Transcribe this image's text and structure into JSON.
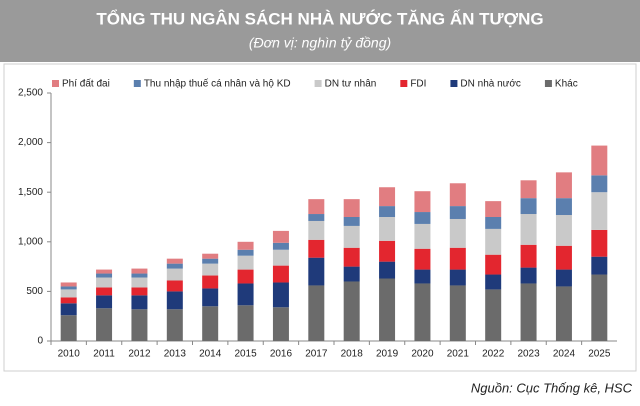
{
  "chart_data": {
    "type": "stacked_bar",
    "title": "TỔNG THU NGÂN SÁCH NHÀ NƯỚC TĂNG ẤN TƯỢNG",
    "subtitle": "(Đơn vị: nghìn tỷ đồng)",
    "source": "Nguồn: Cục Thống kê, HSC",
    "categories": [
      "2010",
      "2011",
      "2012",
      "2013",
      "2014",
      "2015",
      "2016",
      "2017",
      "2018",
      "2019",
      "2020",
      "2021",
      "2022",
      "2023",
      "2024",
      "2025"
    ],
    "series": [
      {
        "name": "Phí đất đai",
        "color": "#e17d81",
        "values": [
          40,
          40,
          50,
          50,
          50,
          80,
          120,
          150,
          180,
          190,
          210,
          230,
          160,
          180,
          260,
          300
        ]
      },
      {
        "name": "Thu nhập thuế cá nhân và hộ KD",
        "color": "#5b7fae",
        "values": [
          30,
          40,
          40,
          50,
          50,
          60,
          70,
          70,
          90,
          110,
          120,
          130,
          120,
          160,
          170,
          170
        ]
      },
      {
        "name": "DN tư nhân",
        "color": "#c9c9c9",
        "values": [
          80,
          100,
          100,
          120,
          120,
          140,
          160,
          190,
          220,
          240,
          250,
          290,
          260,
          310,
          310,
          380
        ]
      },
      {
        "name": "FDI",
        "color": "#e3262f",
        "values": [
          60,
          80,
          80,
          110,
          130,
          140,
          170,
          180,
          190,
          210,
          210,
          220,
          200,
          230,
          240,
          270
        ]
      },
      {
        "name": "DN nhà nước",
        "color": "#1f3a7a",
        "values": [
          120,
          130,
          140,
          180,
          180,
          220,
          250,
          280,
          150,
          170,
          140,
          160,
          150,
          160,
          170,
          180
        ]
      },
      {
        "name": "Khác",
        "color": "#6b6b6b",
        "values": [
          260,
          330,
          320,
          320,
          350,
          360,
          340,
          560,
          600,
          630,
          580,
          560,
          520,
          580,
          550,
          670
        ]
      }
    ],
    "ylim": [
      0,
      2500
    ],
    "yticks": [
      0,
      500,
      {
        "value": 1000,
        "label": "1,000"
      },
      {
        "value": 1500,
        "label": "1,500"
      },
      {
        "value": 2000,
        "label": "2,000"
      },
      {
        "value": 2500,
        "label": "2,500"
      }
    ]
  }
}
